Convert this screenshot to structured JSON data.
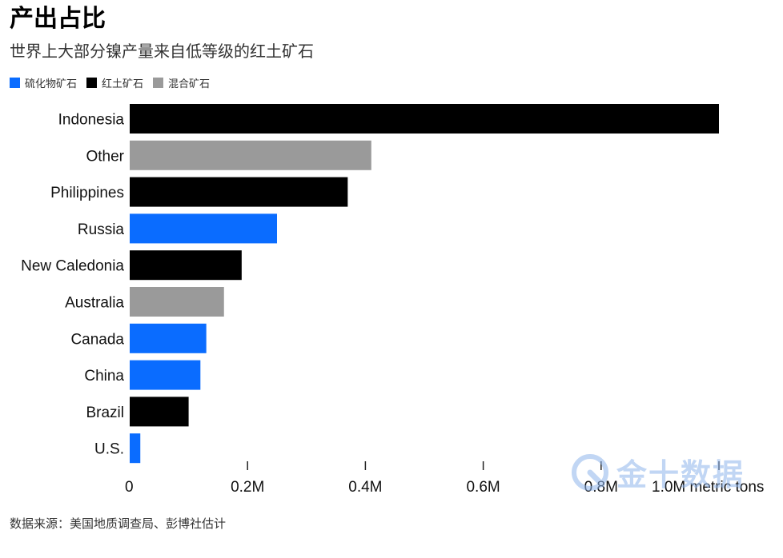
{
  "header": {
    "title": "产出占比",
    "subtitle": "世界上大部分镍产量来自低等级的红土矿石"
  },
  "legend": [
    {
      "label": "硫化物矿石",
      "color": "#0a6cff"
    },
    {
      "label": "红土矿石",
      "color": "#000000"
    },
    {
      "label": "混合矿石",
      "color": "#9a9a9a"
    }
  ],
  "chart_data": {
    "type": "bar",
    "orientation": "horizontal",
    "categories": [
      "Indonesia",
      "Other",
      "Philippines",
      "Russia",
      "New Caledonia",
      "Australia",
      "Canada",
      "China",
      "Brazil",
      "U.S."
    ],
    "values": [
      1000000,
      410000,
      370000,
      250000,
      190000,
      160000,
      130000,
      120000,
      100000,
      18000
    ],
    "ore_type": [
      "红土矿石",
      "混合矿石",
      "红土矿石",
      "硫化物矿石",
      "红土矿石",
      "混合矿石",
      "硫化物矿石",
      "硫化物矿石",
      "红土矿石",
      "硫化物矿石"
    ],
    "x_ticks": [
      0,
      200000,
      400000,
      600000,
      800000,
      1000000
    ],
    "x_tick_labels": [
      "0",
      "0.2M",
      "0.4M",
      "0.6M",
      "0.8M",
      "1.0M metric tons"
    ],
    "xlim": [
      0,
      1000000
    ],
    "grid": false,
    "legend_position": "top-left"
  },
  "footer": {
    "source": "数据来源：美国地质调查局、彭博社估计"
  },
  "watermark": {
    "text": "金十数据"
  }
}
